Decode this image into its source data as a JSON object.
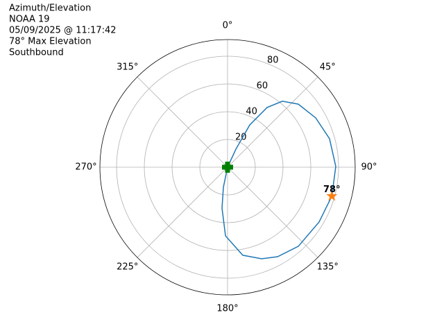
{
  "chart_data": {
    "type": "polar",
    "title_lines": [
      "Azimuth/Elevation",
      "NOAA 19",
      "05/09/2025 @ 11:17:42",
      "78° Max Elevation",
      "Southbound"
    ],
    "x": [
      0,
      24.8,
      27.7,
      33.5,
      39.7,
      48.3,
      60.8,
      74.4,
      89.6,
      105.5,
      120.9,
      138.2,
      150.8,
      159.6,
      170.2,
      181.7,
      187.7,
      191.7,
      0
    ],
    "values": [
      0,
      14.3,
      34.4,
      51.6,
      61.8,
      68.3,
      72.8,
      76.3,
      78,
      78,
      76.9,
      76.5,
      73.9,
      70.4,
      64.4,
      49.5,
      29.8,
      14.8,
      0
    ],
    "color": "#1f77b4",
    "max_point": {
      "x": 105.5,
      "value": 78,
      "value_label": "78°",
      "color": "#ff7f0e"
    },
    "start_point": {
      "x": 0,
      "value": 0,
      "color": "#008000"
    },
    "rlim": [
      0,
      92
    ],
    "rticks": [
      20,
      40,
      60,
      80
    ],
    "xticks": [
      {
        "value": 0,
        "label": "0°"
      },
      {
        "value": 45,
        "label": "45°"
      },
      {
        "value": 90,
        "label": "90°"
      },
      {
        "value": 135,
        "label": "135°"
      },
      {
        "value": 180,
        "label": "180°"
      },
      {
        "value": 225,
        "label": "225°"
      },
      {
        "value": 270,
        "label": "270°"
      },
      {
        "value": 315,
        "label": "315°"
      }
    ],
    "grid": true
  }
}
